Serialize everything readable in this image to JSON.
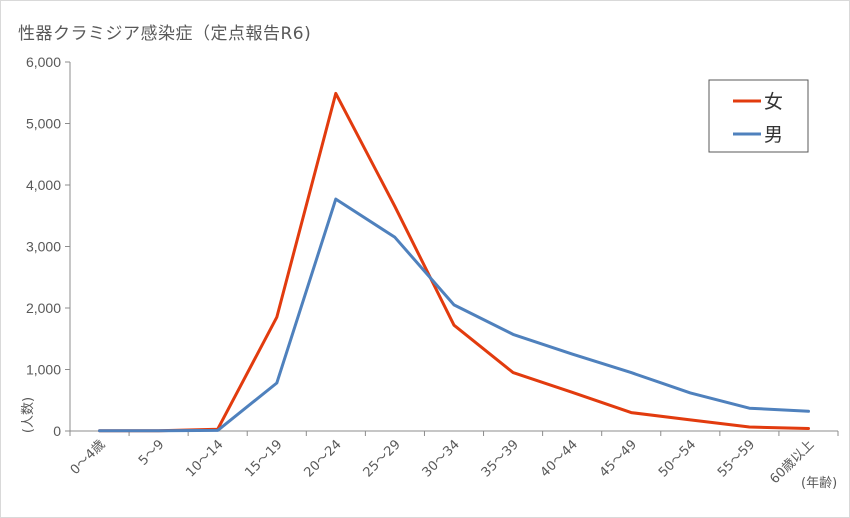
{
  "chart_data": {
    "type": "line",
    "title": "性器クラミジア感染症（定点報告R6)",
    "xlabel": "(年齢)",
    "ylabel": "(人数)",
    "ylim": [
      0,
      6000
    ],
    "yticks": [
      "0",
      "1,000",
      "2,000",
      "3,000",
      "4,000",
      "5,000",
      "6,000"
    ],
    "grid": false,
    "legend_position": "top-right",
    "categories": [
      "0～4歳",
      "5～9",
      "10～14",
      "15～19",
      "20～24",
      "25～29",
      "30～34",
      "35～39",
      "40～44",
      "45～49",
      "50～54",
      "55～59",
      "60歳以上"
    ],
    "series": [
      {
        "name": "女",
        "color": "#e23b0e",
        "values": [
          5,
          5,
          30,
          1850,
          5490,
          3650,
          1720,
          950,
          630,
          300,
          180,
          65,
          40
        ]
      },
      {
        "name": "男",
        "color": "#4f81bd",
        "values": [
          5,
          5,
          10,
          780,
          3770,
          3150,
          2050,
          1570,
          1250,
          950,
          620,
          370,
          320
        ]
      }
    ]
  }
}
